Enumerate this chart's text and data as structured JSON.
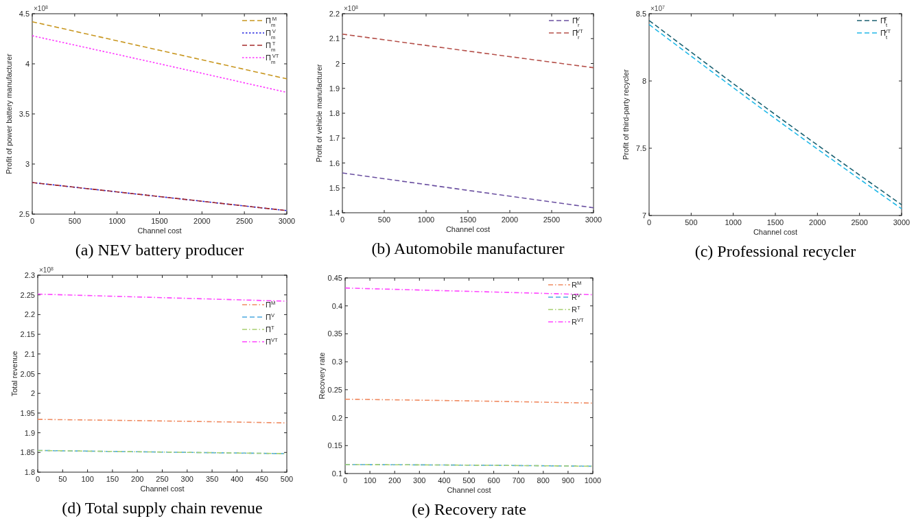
{
  "chart_data": [
    {
      "type": "line",
      "title": "(a) NEV battery producer",
      "xlabel": "Channel cost",
      "ylabel": "Profit of power battery manufacturer",
      "annotations": [
        "×10$^{8}$"
      ],
      "xlim": [
        0,
        3000
      ],
      "xticks": [
        0,
        500,
        1000,
        1500,
        2000,
        2500,
        3000
      ],
      "ylim": [
        2.5,
        4.5
      ],
      "yticks": [
        2.5,
        3,
        3.5,
        4,
        4.5
      ],
      "legend": "top right",
      "grid": false,
      "x": [
        0,
        1500,
        3000
      ],
      "series": [
        {
          "name": "Π$_{m}$$^{M}$",
          "color": "#c8961e",
          "line_style": "dashed",
          "values": [
            4.42,
            4.135,
            3.85
          ]
        },
        {
          "name": "Π$_{m}$$^{V}$",
          "color": "#2020e0",
          "line_style": "dotted",
          "values": [
            2.815,
            2.675,
            2.535
          ]
        },
        {
          "name": "Π$_{m}$$^{T}$",
          "color": "#a52a2a",
          "line_style": "dashed",
          "values": [
            2.815,
            2.675,
            2.535
          ]
        },
        {
          "name": "Π$_{m}$$^{VT}$",
          "color": "#ff33ff",
          "line_style": "dotted",
          "values": [
            4.28,
            4.0,
            3.715
          ]
        }
      ]
    },
    {
      "type": "line",
      "title": "(b) Automobile manufacturer",
      "xlabel": "Channel cost",
      "ylabel": "Profit of vehicle manufacturer",
      "annotations": [
        "×10$^{8}$"
      ],
      "xlim": [
        0,
        3000
      ],
      "xticks": [
        0,
        500,
        1000,
        1500,
        2000,
        2500,
        3000
      ],
      "ylim": [
        1.4,
        2.2
      ],
      "yticks": [
        1.4,
        1.5,
        1.6,
        1.7,
        1.8,
        1.9,
        2,
        2.1,
        2.2
      ],
      "legend": "top right",
      "grid": false,
      "x": [
        0,
        1500,
        3000
      ],
      "series": [
        {
          "name": "Π$_{r}$$^{V}$",
          "color": "#6a4fa0",
          "line_style": "dashed",
          "values": [
            1.56,
            1.49,
            1.42
          ]
        },
        {
          "name": "Π$_{r}$$^{VT}$",
          "color": "#b5504a",
          "line_style": "dashed",
          "values": [
            2.118,
            2.05,
            1.983
          ]
        }
      ]
    },
    {
      "type": "line",
      "title": "(c) Professional recycler",
      "xlabel": "Channel cost",
      "ylabel": "Profit of third-party recycler",
      "annotations": [
        "×10$^{7}$"
      ],
      "xlim": [
        0,
        3000
      ],
      "xticks": [
        0,
        500,
        1000,
        1500,
        2000,
        2500,
        3000
      ],
      "ylim": [
        7,
        8.5
      ],
      "yticks": [
        7,
        7.5,
        8,
        8.5
      ],
      "legend": "top right",
      "grid": false,
      "x": [
        0,
        1500,
        3000
      ],
      "series": [
        {
          "name": "Π$_{t}$$^{T}$",
          "color": "#1a6070",
          "line_style": "dashed",
          "values": [
            8.45,
            7.75,
            7.08
          ]
        },
        {
          "name": "Π$_{t}$$^{VT}$",
          "color": "#1fb8e8",
          "line_style": "dashed",
          "values": [
            8.42,
            7.72,
            7.05
          ]
        }
      ]
    },
    {
      "type": "line",
      "title": "(d) Total supply chain revenue",
      "xlabel": "Channel cost",
      "ylabel": "Total revenue",
      "annotations": [
        "×10$^{8}$"
      ],
      "xlim": [
        0,
        500
      ],
      "xticks": [
        0,
        50,
        100,
        150,
        200,
        250,
        300,
        350,
        400,
        450,
        500
      ],
      "ylim": [
        1.8,
        2.3
      ],
      "yticks": [
        1.8,
        1.85,
        1.9,
        1.95,
        2,
        2.05,
        2.1,
        2.15,
        2.2,
        2.25,
        2.3
      ],
      "legend": "right",
      "grid": false,
      "x": [
        0,
        250,
        500
      ],
      "series": [
        {
          "name": "Π$^{M}$",
          "color": "#f08a60",
          "line_style": "dashdot",
          "values": [
            1.934,
            1.93,
            1.925
          ]
        },
        {
          "name": "Π$^{V}$",
          "color": "#4aa8e0",
          "line_style": "dashed",
          "values": [
            1.855,
            1.851,
            1.847
          ]
        },
        {
          "name": "Π$^{T}$",
          "color": "#a8d070",
          "line_style": "dashdot",
          "values": [
            1.855,
            1.851,
            1.847
          ]
        },
        {
          "name": "Π$^{VT}$",
          "color": "#ff44ff",
          "line_style": "dashdot",
          "values": [
            2.252,
            2.243,
            2.234
          ]
        }
      ]
    },
    {
      "type": "line",
      "title": "(e) Recovery rate",
      "xlabel": "Channel cost",
      "ylabel": "Recovery rate",
      "xlim": [
        0,
        1000
      ],
      "xticks": [
        0,
        100,
        200,
        300,
        400,
        500,
        600,
        700,
        800,
        900,
        1000
      ],
      "ylim": [
        0.1,
        0.45
      ],
      "yticks": [
        0.1,
        0.15,
        0.2,
        0.25,
        0.3,
        0.35,
        0.4,
        0.45
      ],
      "legend": "top right",
      "grid": false,
      "x": [
        0,
        500,
        1000
      ],
      "series": [
        {
          "name": "R$^{M}$",
          "color": "#f08a60",
          "line_style": "dashdot",
          "values": [
            0.233,
            0.23,
            0.226
          ]
        },
        {
          "name": "R$^{V}$",
          "color": "#4aa8e0",
          "line_style": "dashed",
          "values": [
            0.116,
            0.115,
            0.113
          ]
        },
        {
          "name": "R$^{T}$",
          "color": "#a8d070",
          "line_style": "dashdot",
          "values": [
            0.116,
            0.115,
            0.113
          ]
        },
        {
          "name": "R$^{VT}$",
          "color": "#ff44ff",
          "line_style": "dashdot",
          "values": [
            0.432,
            0.426,
            0.42
          ]
        }
      ]
    }
  ]
}
